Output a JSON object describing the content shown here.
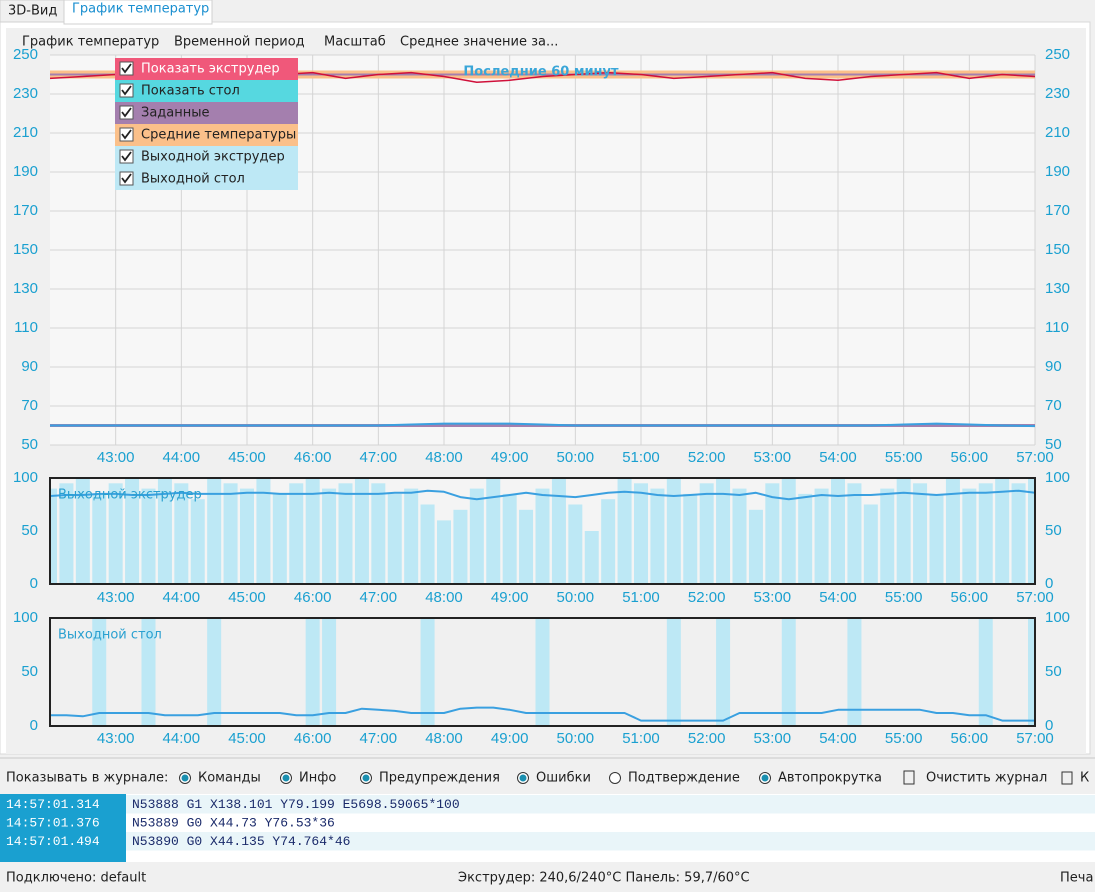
{
  "tabs": [
    "3D-Вид",
    "График температур"
  ],
  "menu": [
    "График температур",
    "Временной период",
    "Масштаб",
    "Среднее значение за..."
  ],
  "legend": [
    {
      "label": "Показать экструдер",
      "color": "#f0587a",
      "checked": true
    },
    {
      "label": "Показать стол",
      "color": "#56d8e0",
      "checked": true
    },
    {
      "label": "Заданные",
      "color": "#a47fae",
      "checked": true
    },
    {
      "label": "Средние температуры",
      "color": "#fbc08a",
      "checked": true
    },
    {
      "label": "Выходной экструдер",
      "color": "#bde8f5",
      "checked": true
    },
    {
      "label": "Выходной стол",
      "color": "#bde8f5",
      "checked": true
    }
  ],
  "charts": [
    {
      "type": "line",
      "title": "Последние 60 минут",
      "grid": true,
      "xlim": [
        42,
        57
      ],
      "ylim": [
        50,
        250
      ],
      "yticks": [
        50,
        70,
        90,
        110,
        130,
        150,
        170,
        190,
        210,
        230,
        250
      ],
      "xticks": [
        {
          "value": 43,
          "label": "43:00"
        },
        {
          "value": 44,
          "label": "44:00"
        },
        {
          "value": 45,
          "label": "45:00"
        },
        {
          "value": 46,
          "label": "46:00"
        },
        {
          "value": 47,
          "label": "47:00"
        },
        {
          "value": 48,
          "label": "48:00"
        },
        {
          "value": 49,
          "label": "49:00"
        },
        {
          "value": 50,
          "label": "50:00"
        },
        {
          "value": 51,
          "label": "51:00"
        },
        {
          "value": 52,
          "label": "52:00"
        },
        {
          "value": 53,
          "label": "53:00"
        },
        {
          "value": 54,
          "label": "54:00"
        },
        {
          "value": 55,
          "label": "55:00"
        },
        {
          "value": 56,
          "label": "56:00"
        },
        {
          "value": 57,
          "label": "57:00"
        }
      ],
      "x": [
        42,
        42.5,
        43,
        43.5,
        44,
        44.5,
        45,
        45.5,
        46,
        46.5,
        47,
        47.5,
        48,
        48.5,
        49,
        49.5,
        50,
        50.5,
        51,
        51.5,
        52,
        52.5,
        53,
        53.5,
        54,
        54.5,
        55,
        55.5,
        56,
        56.5,
        57
      ],
      "series": [
        {
          "color": "#fbc08a",
          "values": [
            240,
            240,
            240,
            240,
            240,
            240,
            240,
            240,
            240,
            240,
            240,
            240,
            240,
            240,
            240,
            240,
            240,
            240,
            240,
            240,
            240,
            240,
            240,
            240,
            240,
            240,
            240,
            240,
            240,
            240,
            240
          ]
        },
        {
          "color": "#a47fae",
          "values": [
            240,
            240,
            240,
            240,
            240,
            240,
            240,
            240,
            240,
            240,
            240,
            240,
            240,
            240,
            240,
            240,
            240,
            240,
            240,
            240,
            240,
            240,
            240,
            240,
            240,
            240,
            240,
            240,
            240,
            240,
            240
          ]
        },
        {
          "color": "#d0103a",
          "values": [
            238,
            239,
            240,
            241,
            240,
            242,
            239,
            240,
            241,
            238,
            240,
            241,
            239,
            236,
            237,
            239,
            240,
            241,
            240,
            238,
            239,
            240,
            241,
            238,
            237,
            239,
            240,
            241,
            238,
            240,
            239
          ]
        },
        {
          "color": "#a47fae",
          "values": [
            60,
            60,
            60,
            60,
            60,
            60,
            60,
            60,
            60,
            60,
            60,
            60,
            60,
            60,
            60,
            60,
            60,
            60,
            60,
            60,
            60,
            60,
            60,
            60,
            60,
            60,
            60,
            60,
            60,
            60,
            60
          ]
        },
        {
          "color": "#3aa0e0",
          "values": [
            60,
            60,
            60,
            60,
            60,
            60,
            60,
            60,
            60,
            60,
            60,
            60.5,
            61,
            61,
            61,
            60.5,
            60,
            60,
            60,
            60,
            60,
            60,
            60,
            60,
            60,
            60,
            60.5,
            61,
            60.5,
            60,
            59.7
          ]
        }
      ]
    },
    {
      "type": "bar",
      "title": "Выходной экструдер",
      "xlim": [
        42,
        57
      ],
      "ylim": [
        0,
        100
      ],
      "yticks": [
        0,
        50,
        100
      ],
      "xticks": [
        {
          "value": 43,
          "label": "43:00"
        },
        {
          "value": 44,
          "label": "44:00"
        },
        {
          "value": 45,
          "label": "45:00"
        },
        {
          "value": 46,
          "label": "46:00"
        },
        {
          "value": 47,
          "label": "47:00"
        },
        {
          "value": 48,
          "label": "48:00"
        },
        {
          "value": 49,
          "label": "49:00"
        },
        {
          "value": 50,
          "label": "50:00"
        },
        {
          "value": 51,
          "label": "51:00"
        },
        {
          "value": 52,
          "label": "52:00"
        },
        {
          "value": 53,
          "label": "53:00"
        },
        {
          "value": 54,
          "label": "54:00"
        },
        {
          "value": 55,
          "label": "55:00"
        },
        {
          "value": 56,
          "label": "56:00"
        },
        {
          "value": 57,
          "label": "57:00"
        }
      ],
      "x": [
        42,
        42.25,
        42.5,
        42.75,
        43,
        43.25,
        43.5,
        43.75,
        44,
        44.25,
        44.5,
        44.75,
        45,
        45.25,
        45.5,
        45.75,
        46,
        46.25,
        46.5,
        46.75,
        47,
        47.25,
        47.5,
        47.75,
        48,
        48.25,
        48.5,
        48.75,
        49,
        49.25,
        49.5,
        49.75,
        50,
        50.25,
        50.5,
        50.75,
        51,
        51.25,
        51.5,
        51.75,
        52,
        52.25,
        52.5,
        52.75,
        53,
        53.25,
        53.5,
        53.75,
        54,
        54.25,
        54.5,
        54.75,
        55,
        55.25,
        55.5,
        55.75,
        56,
        56.25,
        56.5,
        56.75,
        57
      ],
      "series": [
        {
          "type": "bar",
          "color": "#bde8f5",
          "values": [
            90,
            95,
            100,
            85,
            95,
            100,
            90,
            100,
            95,
            80,
            100,
            95,
            90,
            100,
            85,
            95,
            100,
            90,
            95,
            100,
            95,
            85,
            90,
            75,
            60,
            70,
            90,
            100,
            85,
            70,
            90,
            100,
            75,
            50,
            80,
            100,
            95,
            90,
            100,
            85,
            95,
            100,
            90,
            70,
            95,
            100,
            85,
            90,
            100,
            95,
            75,
            90,
            100,
            95,
            85,
            100,
            90,
            95,
            100,
            95,
            100
          ]
        },
        {
          "type": "line",
          "color": "#3aa0e0",
          "values": [
            83,
            84,
            84,
            85,
            85,
            84,
            84,
            85,
            86,
            85,
            85,
            85,
            86,
            86,
            85,
            85,
            85,
            86,
            85,
            85,
            85,
            86,
            86,
            88,
            87,
            82,
            80,
            82,
            84,
            86,
            84,
            83,
            82,
            84,
            86,
            87,
            86,
            84,
            83,
            84,
            85,
            85,
            84,
            86,
            82,
            80,
            82,
            84,
            83,
            84,
            84,
            85,
            86,
            85,
            84,
            85,
            86,
            86,
            87,
            88,
            86
          ]
        }
      ]
    },
    {
      "type": "bar",
      "title": "Выходной стол",
      "xlim": [
        42,
        57
      ],
      "ylim": [
        0,
        100
      ],
      "yticks": [
        0,
        50,
        100
      ],
      "xticks": [
        {
          "value": 43,
          "label": "43:00"
        },
        {
          "value": 44,
          "label": "44:00"
        },
        {
          "value": 45,
          "label": "45:00"
        },
        {
          "value": 46,
          "label": "46:00"
        },
        {
          "value": 47,
          "label": "47:00"
        },
        {
          "value": 48,
          "label": "48:00"
        },
        {
          "value": 49,
          "label": "49:00"
        },
        {
          "value": 50,
          "label": "50:00"
        },
        {
          "value": 51,
          "label": "51:00"
        },
        {
          "value": 52,
          "label": "52:00"
        },
        {
          "value": 53,
          "label": "53:00"
        },
        {
          "value": 54,
          "label": "54:00"
        },
        {
          "value": 55,
          "label": "55:00"
        },
        {
          "value": 56,
          "label": "56:00"
        },
        {
          "value": 57,
          "label": "57:00"
        }
      ],
      "x": [
        42,
        42.25,
        42.5,
        42.75,
        43,
        43.25,
        43.5,
        43.75,
        44,
        44.25,
        44.5,
        44.75,
        45,
        45.25,
        45.5,
        45.75,
        46,
        46.25,
        46.5,
        46.75,
        47,
        47.25,
        47.5,
        47.75,
        48,
        48.25,
        48.5,
        48.75,
        49,
        49.25,
        49.5,
        49.75,
        50,
        50.25,
        50.5,
        50.75,
        51,
        51.25,
        51.5,
        51.75,
        52,
        52.25,
        52.5,
        52.75,
        53,
        53.25,
        53.5,
        53.75,
        54,
        54.25,
        54.5,
        54.75,
        55,
        55.25,
        55.5,
        55.75,
        56,
        56.25,
        56.5,
        56.75,
        57
      ],
      "series": [
        {
          "type": "bar",
          "color": "#bde8f5",
          "values": [
            0,
            0,
            0,
            100,
            0,
            0,
            100,
            0,
            0,
            0,
            100,
            0,
            0,
            0,
            0,
            0,
            100,
            100,
            0,
            0,
            0,
            0,
            0,
            100,
            0,
            0,
            0,
            0,
            0,
            0,
            100,
            0,
            0,
            0,
            0,
            0,
            0,
            0,
            100,
            0,
            0,
            100,
            0,
            0,
            0,
            100,
            0,
            0,
            0,
            100,
            0,
            0,
            0,
            0,
            0,
            0,
            0,
            100,
            0,
            0,
            100
          ]
        },
        {
          "type": "line",
          "color": "#3aa0e0",
          "values": [
            10,
            10,
            9,
            12,
            12,
            12,
            12,
            10,
            10,
            10,
            12,
            12,
            12,
            12,
            12,
            10,
            10,
            12,
            12,
            16,
            15,
            14,
            12,
            12,
            12,
            16,
            17,
            17,
            15,
            12,
            12,
            12,
            12,
            12,
            12,
            12,
            5,
            5,
            5,
            5,
            5,
            5,
            12,
            12,
            12,
            12,
            12,
            12,
            15,
            15,
            15,
            15,
            15,
            15,
            12,
            12,
            10,
            10,
            5,
            5,
            5
          ]
        }
      ]
    }
  ],
  "log_options": {
    "label": "Показывать в журнале:",
    "items": [
      {
        "label": "Команды",
        "checked": true
      },
      {
        "label": "Инфо",
        "checked": true
      },
      {
        "label": "Предупреждения",
        "checked": true
      },
      {
        "label": "Ошибки",
        "checked": true
      },
      {
        "label": "Подтверждение",
        "checked": false
      },
      {
        "label": "Автопрокрутка",
        "checked": true
      }
    ],
    "clear": "Очистить журнал",
    "copy": "К"
  },
  "log": [
    {
      "time": "14:57:01.314",
      "text": "N53888 G1 X138.101 Y79.199 E5698.59065*100"
    },
    {
      "time": "14:57:01.376",
      "text": "N53889 G0 X44.73 Y76.53*36"
    },
    {
      "time": "14:57:01.494",
      "text": "N53890 G0 X44.135 Y74.764*46"
    }
  ],
  "status": {
    "connection": "Подключено: default",
    "temps": "Экструдер: 240,6/240°C Панель: 59,7/60°C",
    "right": "Печа"
  }
}
